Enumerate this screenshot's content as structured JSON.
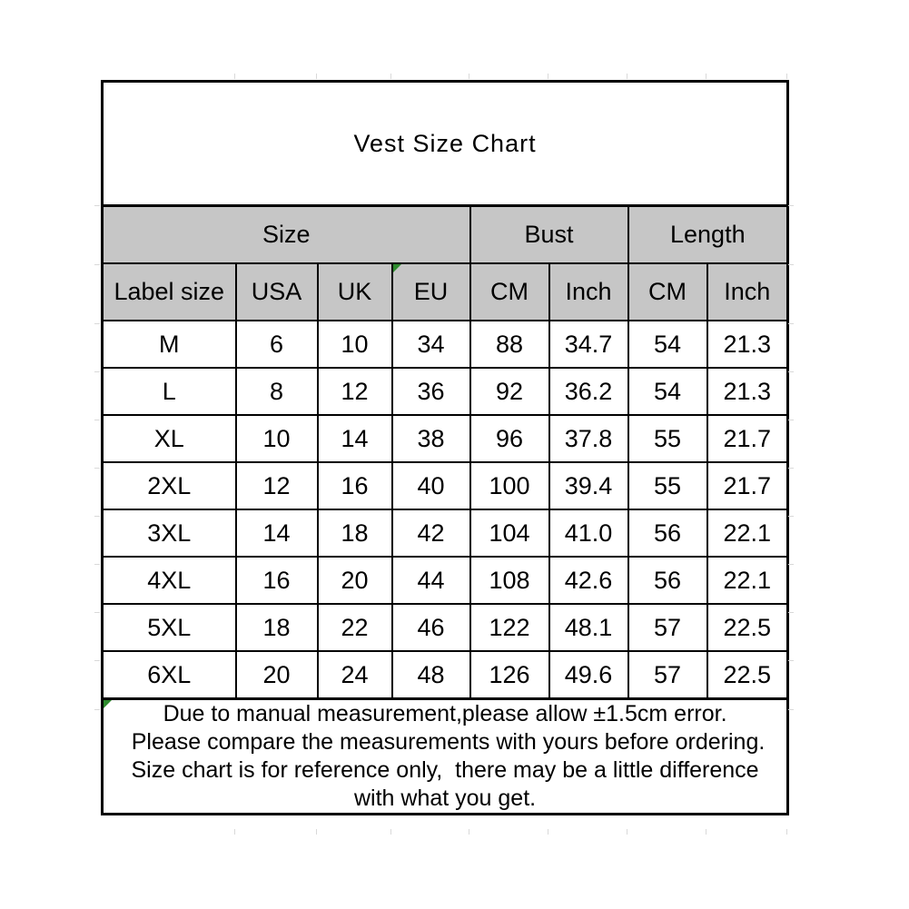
{
  "chart_data": {
    "type": "table",
    "title": "Vest Size Chart",
    "column_groups": [
      {
        "label": "Size",
        "span": 4
      },
      {
        "label": "Bust",
        "span": 2
      },
      {
        "label": "Length",
        "span": 2
      }
    ],
    "columns": [
      "Label size",
      "USA",
      "UK",
      "EU",
      "CM",
      "Inch",
      "CM",
      "Inch"
    ],
    "rows": [
      [
        "M",
        "6",
        "10",
        "34",
        "88",
        "34.7",
        "54",
        "21.3"
      ],
      [
        "L",
        "8",
        "12",
        "36",
        "92",
        "36.2",
        "54",
        "21.3"
      ],
      [
        "XL",
        "10",
        "14",
        "38",
        "96",
        "37.8",
        "55",
        "21.7"
      ],
      [
        "2XL",
        "12",
        "16",
        "40",
        "100",
        "39.4",
        "55",
        "21.7"
      ],
      [
        "3XL",
        "14",
        "18",
        "42",
        "104",
        "41.0",
        "56",
        "22.1"
      ],
      [
        "4XL",
        "16",
        "20",
        "44",
        "108",
        "42.6",
        "56",
        "22.1"
      ],
      [
        "5XL",
        "18",
        "22",
        "46",
        "122",
        "48.1",
        "57",
        "22.5"
      ],
      [
        "6XL",
        "20",
        "24",
        "48",
        "126",
        "49.6",
        "57",
        "22.5"
      ]
    ],
    "notes": [
      "Due to manual measurement,please allow ±1.5cm error.",
      " Please compare the measurements with yours before ordering.",
      "Size chart is for reference only,  there may be a little difference",
      "with what you get."
    ],
    "layout_hints": {
      "units": "sizes in US/UK/EU standards; bust and length in CM and Inch"
    }
  },
  "colors": {
    "header_fill": "#c6c6c6",
    "border": "#000000",
    "background": "#ffffff",
    "error_marker_green": "#2e8b2e"
  }
}
